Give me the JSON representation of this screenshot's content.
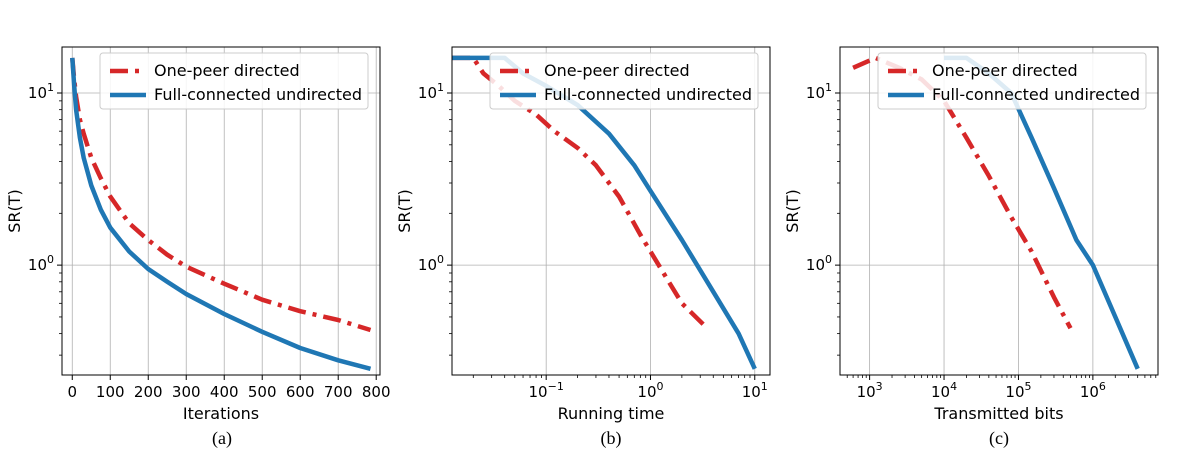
{
  "colors": {
    "series_red": "#d62728",
    "series_blue": "#1f77b4",
    "grid": "#b0b0b0",
    "frame": "#000000"
  },
  "chart_data": [
    {
      "type": "line",
      "caption": "(a)",
      "xlabel": "Iterations",
      "ylabel": "SR(T)",
      "xscale": "linear",
      "yscale": "log",
      "xlim": [
        -27,
        810
      ],
      "ylim": [
        0.23,
        18.5
      ],
      "xticks": [
        0,
        100,
        200,
        300,
        400,
        500,
        600,
        700,
        800
      ],
      "xtick_labels": [
        "0",
        "100",
        "200",
        "300",
        "400",
        "500",
        "600",
        "700",
        "800"
      ],
      "yticks": [
        1,
        10
      ],
      "ytick_labels": [
        {
          "base": "10",
          "exp": "0"
        },
        {
          "base": "10",
          "exp": "1"
        }
      ],
      "grid": true,
      "legend": {
        "position": "top-right",
        "entries": [
          "One-peer directed",
          "Full-connected undirected"
        ]
      },
      "series": [
        {
          "name": "One-peer directed",
          "style": "dashdot",
          "color": "#d62728",
          "x": [
            0,
            5,
            10,
            20,
            30,
            50,
            75,
            100,
            150,
            200,
            250,
            300,
            400,
            500,
            600,
            700,
            785
          ],
          "y": [
            16,
            12,
            9.5,
            7,
            5.8,
            4.2,
            3.2,
            2.5,
            1.75,
            1.4,
            1.15,
            0.98,
            0.78,
            0.63,
            0.54,
            0.48,
            0.42
          ]
        },
        {
          "name": "Full-connected undirected",
          "style": "solid",
          "color": "#1f77b4",
          "x": [
            0,
            5,
            10,
            20,
            30,
            50,
            75,
            100,
            150,
            200,
            250,
            300,
            400,
            500,
            600,
            700,
            785
          ],
          "y": [
            16,
            11,
            8,
            5.5,
            4.2,
            2.9,
            2.1,
            1.65,
            1.2,
            0.95,
            0.8,
            0.68,
            0.52,
            0.41,
            0.33,
            0.28,
            0.25
          ]
        }
      ]
    },
    {
      "type": "line",
      "caption": "(b)",
      "xlabel": "Running time",
      "ylabel": "SR(T)",
      "xscale": "log",
      "yscale": "log",
      "xlim": [
        0.0125,
        14
      ],
      "ylim": [
        0.23,
        18.5
      ],
      "xticks": [
        0.1,
        1,
        10
      ],
      "xtick_labels": [
        {
          "base": "10",
          "exp": "−1"
        },
        {
          "base": "10",
          "exp": "0"
        },
        {
          "base": "10",
          "exp": "1"
        }
      ],
      "yticks": [
        1,
        10
      ],
      "ytick_labels": [
        {
          "base": "10",
          "exp": "0"
        },
        {
          "base": "10",
          "exp": "1"
        }
      ],
      "grid": true,
      "legend": {
        "position": "top-right",
        "entries": [
          "One-peer directed",
          "Full-connected undirected"
        ]
      },
      "series": [
        {
          "name": "One-peer directed",
          "style": "dashdot",
          "color": "#d62728",
          "x": [
            0.0125,
            0.02,
            0.025,
            0.035,
            0.05,
            0.08,
            0.12,
            0.2,
            0.3,
            0.5,
            0.8,
            1.0,
            1.5,
            2.0,
            3.5
          ],
          "y": [
            16,
            16,
            13,
            11,
            9,
            7.5,
            6.0,
            4.8,
            3.8,
            2.5,
            1.5,
            1.2,
            0.8,
            0.6,
            0.43
          ]
        },
        {
          "name": "Full-connected undirected",
          "style": "solid",
          "color": "#1f77b4",
          "x": [
            0.0125,
            0.04,
            0.06,
            0.1,
            0.2,
            0.4,
            0.7,
            1.0,
            2.0,
            4.0,
            7.0,
            10.0
          ],
          "y": [
            16,
            16,
            13,
            11,
            8.5,
            5.8,
            3.8,
            2.7,
            1.4,
            0.7,
            0.4,
            0.25
          ]
        }
      ]
    },
    {
      "type": "line",
      "caption": "(c)",
      "xlabel": "Transmitted bits",
      "ylabel": "SR(T)",
      "xscale": "log",
      "yscale": "log",
      "xlim": [
        400,
        7500000
      ],
      "ylim": [
        0.23,
        18.5
      ],
      "xticks": [
        1000,
        10000,
        100000,
        1000000
      ],
      "xtick_labels": [
        {
          "base": "10",
          "exp": "3"
        },
        {
          "base": "10",
          "exp": "4"
        },
        {
          "base": "10",
          "exp": "5"
        },
        {
          "base": "10",
          "exp": "6"
        }
      ],
      "yticks": [
        1,
        10
      ],
      "ytick_labels": [
        {
          "base": "10",
          "exp": "0"
        },
        {
          "base": "10",
          "exp": "1"
        }
      ],
      "grid": true,
      "legend": {
        "position": "top-right",
        "entries": [
          "One-peer directed",
          "Full-connected undirected"
        ]
      },
      "series": [
        {
          "name": "One-peer directed",
          "style": "dashdot",
          "color": "#d62728",
          "x": [
            600,
            1200,
            2500,
            5000,
            10000,
            20000,
            40000,
            80000,
            150000,
            300000,
            500000
          ],
          "y": [
            14,
            16,
            14,
            12,
            9,
            5.5,
            3.3,
            1.9,
            1.2,
            0.65,
            0.43
          ]
        },
        {
          "name": "Full-connected undirected",
          "style": "solid",
          "color": "#1f77b4",
          "x": [
            10000,
            20000,
            40000,
            80000,
            150000,
            300000,
            600000,
            1000000,
            2000000,
            4000000
          ],
          "y": [
            16,
            16,
            13,
            10,
            5.5,
            2.8,
            1.4,
            1.0,
            0.5,
            0.25
          ]
        }
      ]
    }
  ]
}
